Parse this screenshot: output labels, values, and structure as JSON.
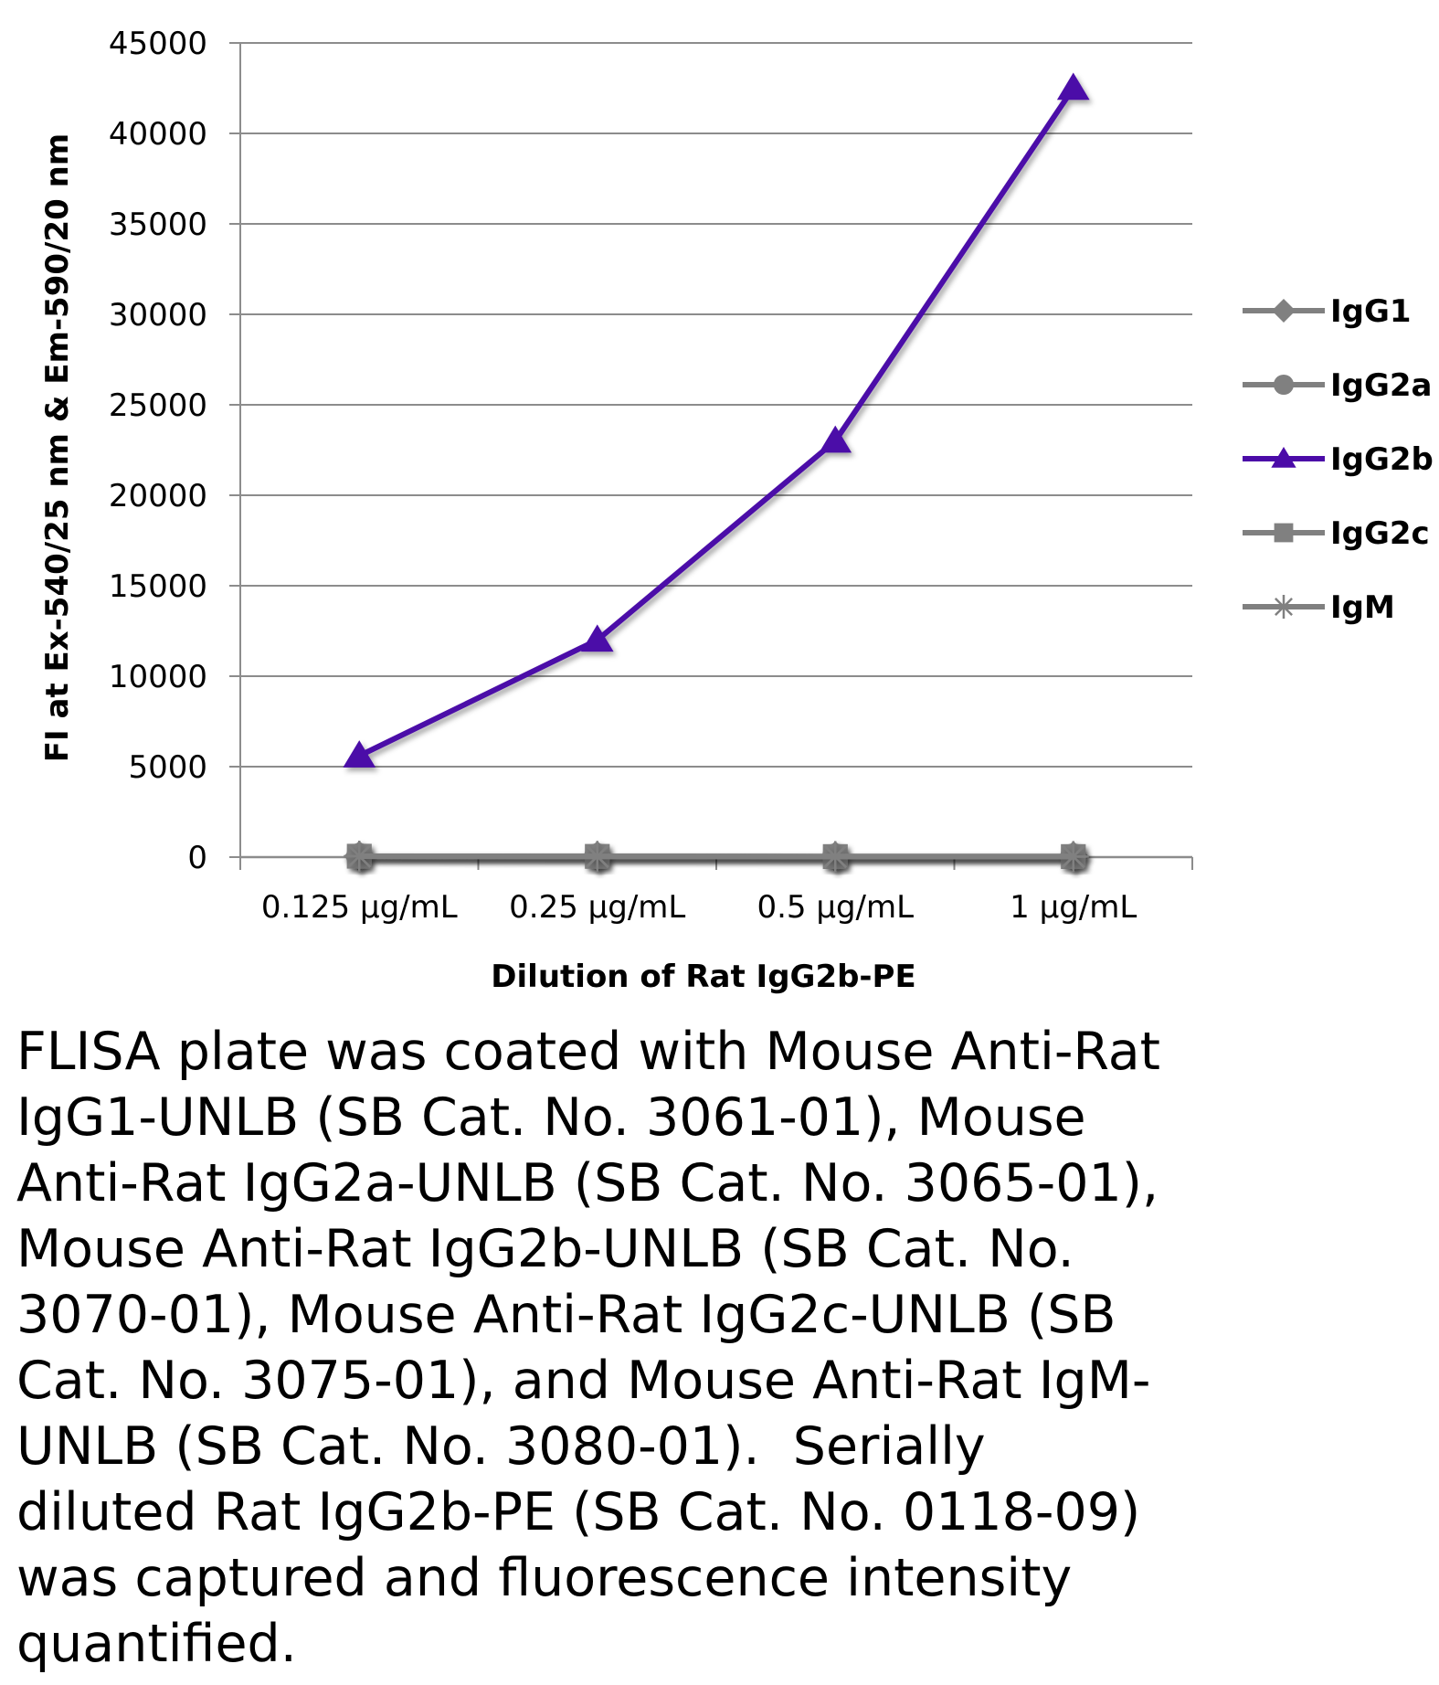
{
  "chart_data": {
    "type": "line",
    "title": "",
    "xlabel": "Dilution of Rat IgG2b-PE",
    "ylabel": "FI at Ex-540/25 nm & Em-590/20 nm",
    "categories": [
      "0.125 µg/mL",
      "0.25 µg/mL",
      "0.5 µg/mL",
      "1 µg/mL"
    ],
    "ylim": [
      0,
      45000
    ],
    "yticks": [
      0,
      5000,
      10000,
      15000,
      20000,
      25000,
      30000,
      35000,
      40000,
      45000
    ],
    "grid": true,
    "legend_position": "right",
    "series": [
      {
        "name": "IgG1",
        "marker": "diamond",
        "color": "#808080",
        "values": [
          50,
          40,
          30,
          30
        ]
      },
      {
        "name": "IgG2a",
        "marker": "circle",
        "color": "#808080",
        "values": [
          50,
          40,
          30,
          30
        ]
      },
      {
        "name": "IgG2b",
        "marker": "triangle",
        "color": "#4B0BA8",
        "values": [
          5600,
          12000,
          23000,
          42500
        ]
      },
      {
        "name": "IgG2c",
        "marker": "square",
        "color": "#808080",
        "values": [
          50,
          40,
          30,
          30
        ]
      },
      {
        "name": "IgM",
        "marker": "star",
        "color": "#808080",
        "values": [
          50,
          40,
          30,
          30
        ]
      }
    ]
  },
  "caption": "FLISA plate was coated with Mouse Anti-Rat IgG1-UNLB (SB Cat. No. 3061-01), Mouse Anti-Rat IgG2a-UNLB (SB Cat. No. 3065-01), Mouse Anti-Rat IgG2b-UNLB (SB Cat. No. 3070-01), Mouse Anti-Rat IgG2c-UNLB (SB Cat. No. 3075-01), and Mouse Anti-Rat IgM-UNLB (SB Cat. No. 3080-01).  Serially diluted Rat IgG2b-PE (SB Cat. No. 0118-09) was captured and fluorescence intensity quantified."
}
